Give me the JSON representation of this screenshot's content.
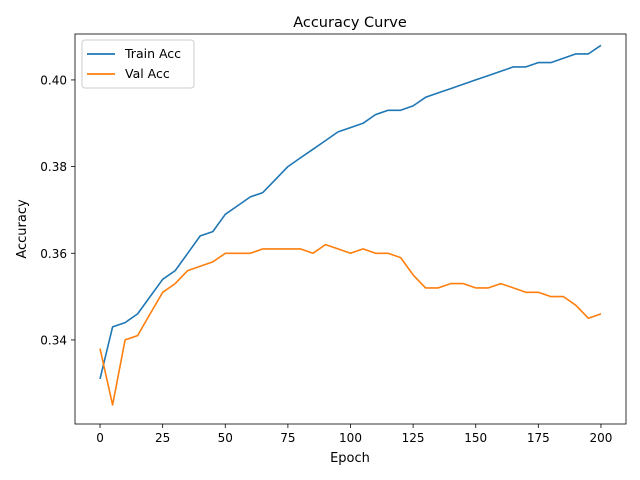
{
  "chart_data": {
    "type": "line",
    "title": "Accuracy Curve",
    "xlabel": "Epoch",
    "ylabel": "Accuracy",
    "xlim": [
      -10,
      210
    ],
    "ylim": [
      0.3206,
      0.4106
    ],
    "xticks": [
      0,
      25,
      50,
      75,
      100,
      125,
      150,
      175,
      200
    ],
    "yticks": [
      0.34,
      0.36,
      0.38,
      0.4
    ],
    "ytick_labels": [
      "0.34",
      "0.36",
      "0.38",
      "0.40"
    ],
    "legend_position": "upper-left",
    "grid": false,
    "series": [
      {
        "name": "Train Acc",
        "color": "#1f77b4",
        "x": [
          0,
          5,
          10,
          15,
          20,
          25,
          30,
          35,
          40,
          45,
          50,
          55,
          60,
          65,
          70,
          75,
          80,
          85,
          90,
          95,
          100,
          105,
          110,
          115,
          120,
          125,
          130,
          135,
          140,
          145,
          150,
          155,
          160,
          165,
          170,
          175,
          180,
          185,
          190,
          195,
          200
        ],
        "values": [
          0.331,
          0.343,
          0.344,
          0.346,
          0.35,
          0.354,
          0.356,
          0.36,
          0.364,
          0.365,
          0.369,
          0.371,
          0.373,
          0.374,
          0.377,
          0.38,
          0.382,
          0.384,
          0.386,
          0.388,
          0.389,
          0.39,
          0.392,
          0.393,
          0.393,
          0.394,
          0.396,
          0.397,
          0.398,
          0.399,
          0.4,
          0.401,
          0.402,
          0.403,
          0.403,
          0.404,
          0.404,
          0.405,
          0.406,
          0.406,
          0.408
        ]
      },
      {
        "name": "Val Acc",
        "color": "#ff7f0e",
        "x": [
          0,
          5,
          10,
          15,
          20,
          25,
          30,
          35,
          40,
          45,
          50,
          55,
          60,
          65,
          70,
          75,
          80,
          85,
          90,
          95,
          100,
          105,
          110,
          115,
          120,
          125,
          130,
          135,
          140,
          145,
          150,
          155,
          160,
          165,
          170,
          175,
          180,
          185,
          190,
          195,
          200
        ],
        "values": [
          0.338,
          0.325,
          0.34,
          0.341,
          0.346,
          0.351,
          0.353,
          0.356,
          0.357,
          0.358,
          0.36,
          0.36,
          0.36,
          0.361,
          0.361,
          0.361,
          0.361,
          0.36,
          0.362,
          0.361,
          0.36,
          0.361,
          0.36,
          0.36,
          0.359,
          0.355,
          0.352,
          0.352,
          0.353,
          0.353,
          0.352,
          0.352,
          0.353,
          0.352,
          0.351,
          0.351,
          0.35,
          0.35,
          0.348,
          0.345,
          0.346
        ]
      }
    ]
  }
}
